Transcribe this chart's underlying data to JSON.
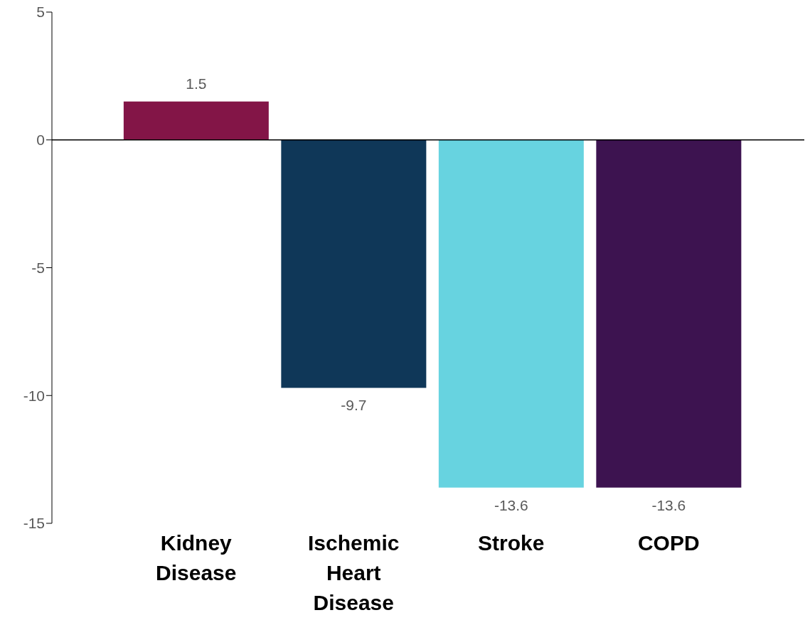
{
  "chart_data": {
    "type": "bar",
    "categories": [
      "Kidney Disease",
      "Ischemic Heart Disease",
      "Stroke",
      "COPD"
    ],
    "values": [
      1.5,
      -9.7,
      -13.6,
      -13.6
    ],
    "colors": [
      "#831547",
      "#0f3758",
      "#67d3e0",
      "#3d1350"
    ],
    "ylim": [
      -15,
      5
    ],
    "yticks": [
      -15,
      -10,
      -5,
      0,
      5
    ],
    "grid": false,
    "data_labels": true,
    "ref_lines": [
      {
        "axis": "y",
        "value": 0,
        "color": "#000000"
      }
    ]
  }
}
